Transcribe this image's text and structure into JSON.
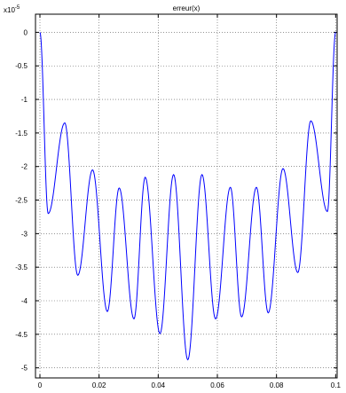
{
  "chart_data": {
    "type": "line",
    "title": "erreur(x)",
    "xlabel": "",
    "ylabel": "",
    "xlim": [
      -0.0015,
      0.1005
    ],
    "ylim": [
      -5.15,
      0.27
    ],
    "y_scale_factor": {
      "base": "x10",
      "exponent": "-5"
    },
    "grid": true,
    "x_ticks": [
      0,
      0.02,
      0.04,
      0.06,
      0.08,
      0.1
    ],
    "x_tick_labels": [
      "0",
      "0.02",
      "0.04",
      "0.06",
      "0.08",
      "0.1"
    ],
    "y_ticks": [
      0,
      -0.5,
      -1,
      -1.5,
      -2,
      -2.5,
      -3,
      -3.5,
      -4,
      -4.5,
      -5
    ],
    "y_tick_labels": [
      "0",
      "-0.5",
      "-1",
      "-1.5",
      "-2",
      "-2.5",
      "-3",
      "-3.5",
      "-4",
      "-4.5",
      "-5"
    ],
    "series": [
      {
        "color": "#0000ff",
        "x": [
          0,
          0.0028,
          0.0084,
          0.0128,
          0.0178,
          0.0228,
          0.0268,
          0.0318,
          0.0356,
          0.0406,
          0.0452,
          0.05,
          0.0548,
          0.0594,
          0.0644,
          0.0682,
          0.0732,
          0.0772,
          0.0822,
          0.0872,
          0.0916,
          0.0972,
          0.1
        ],
        "y": [
          0,
          -2.7,
          -1.35,
          -3.62,
          -2.05,
          -4.16,
          -2.32,
          -4.27,
          -2.16,
          -4.49,
          -2.12,
          -4.88,
          -2.12,
          -4.27,
          -2.31,
          -4.24,
          -2.31,
          -4.18,
          -2.03,
          -3.58,
          -1.32,
          -2.67,
          0
        ]
      }
    ]
  }
}
